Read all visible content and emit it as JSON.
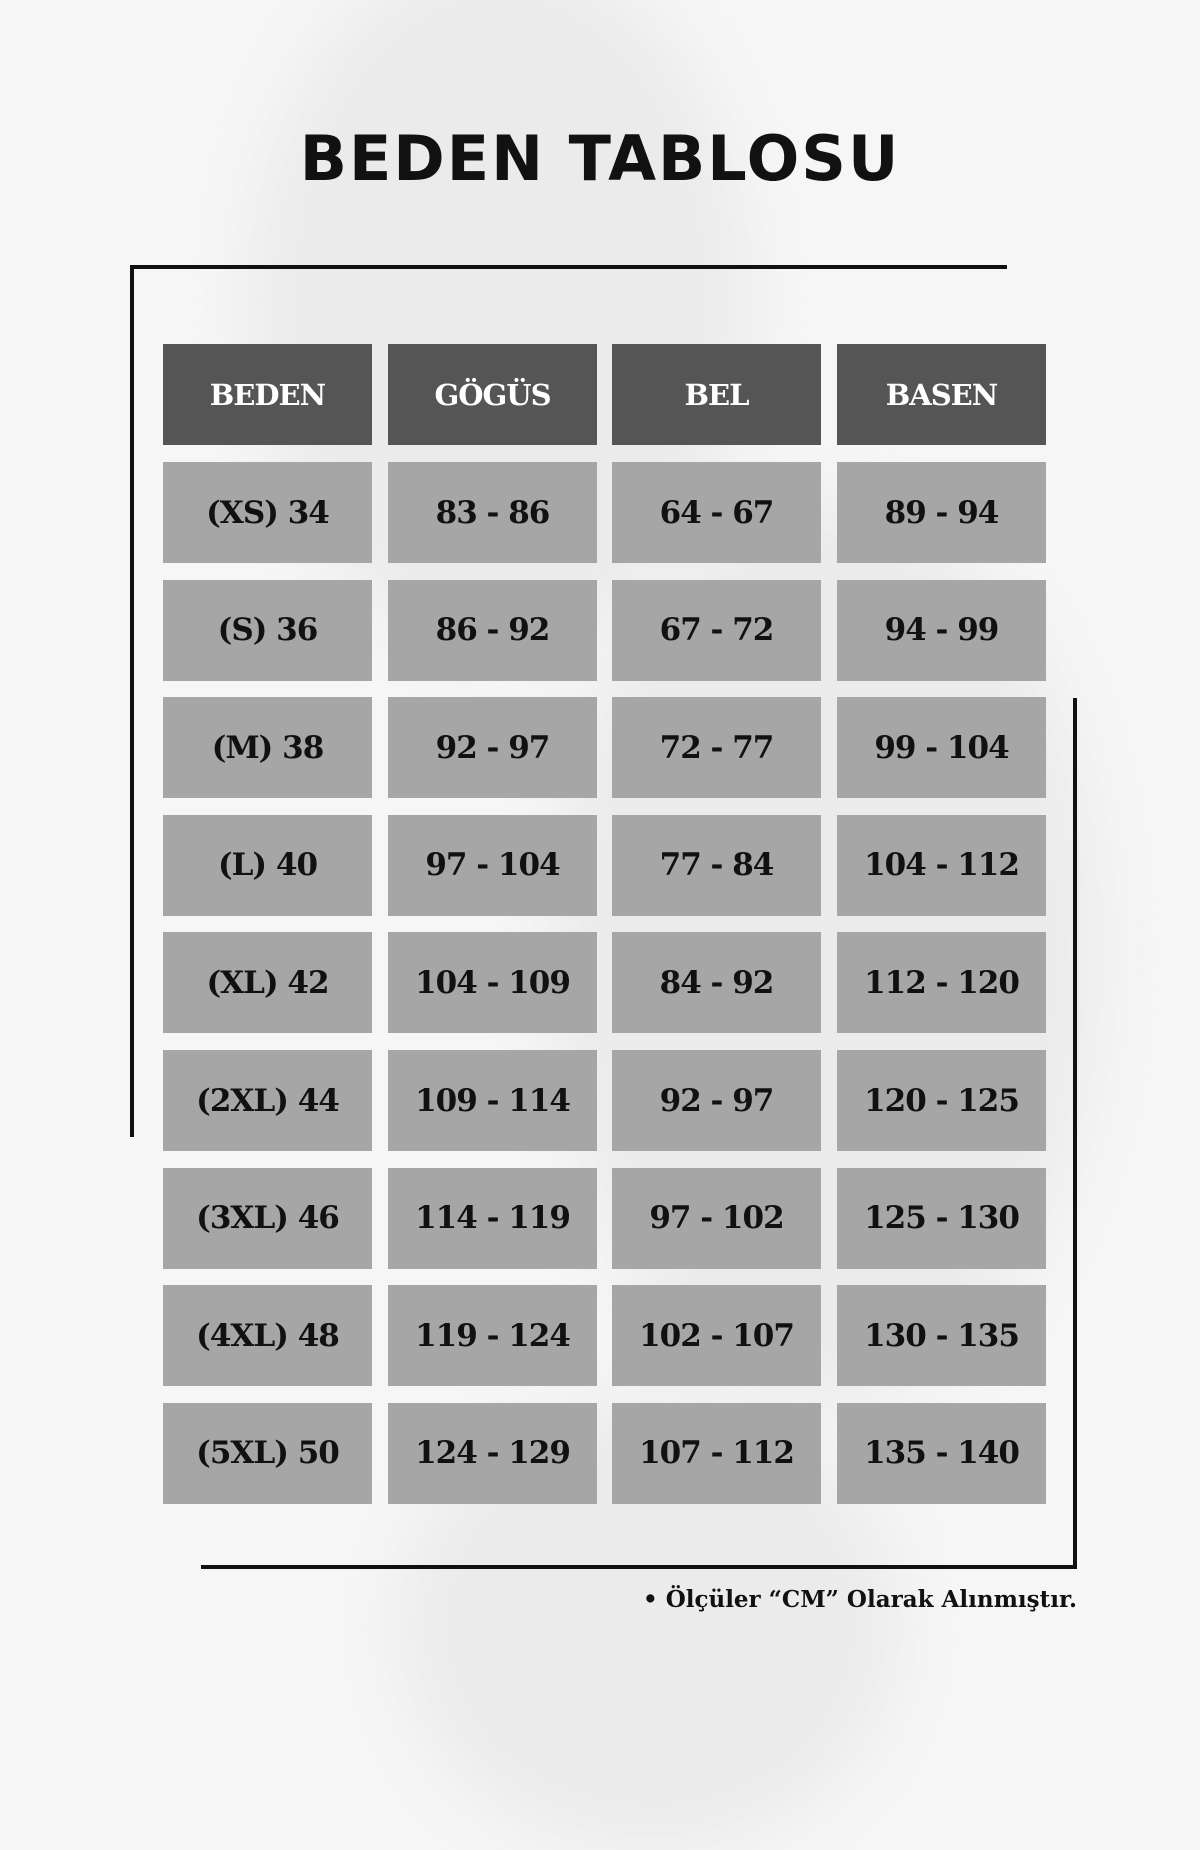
{
  "title": "BEDEN TABLOSU",
  "table": {
    "headers": [
      "BEDEN",
      "GÖGÜS",
      "BEL",
      "BASEN"
    ],
    "rows": [
      [
        "(XS) 34",
        "83 - 86",
        "64 - 67",
        "89 - 94"
      ],
      [
        "(S) 36",
        "86 - 92",
        "67 - 72",
        "94 - 99"
      ],
      [
        "(M) 38",
        "92 - 97",
        "72 - 77",
        "99 - 104"
      ],
      [
        "(L) 40",
        "97 - 104",
        "77 - 84",
        "104 - 112"
      ],
      [
        "(XL) 42",
        "104 - 109",
        "84 - 92",
        "112 - 120"
      ],
      [
        "(2XL) 44",
        "109 - 114",
        "92 - 97",
        "120 - 125"
      ],
      [
        "(3XL) 46",
        "114 - 119",
        "97 - 102",
        "125 - 130"
      ],
      [
        "(4XL) 48",
        "119 - 124",
        "102 - 107",
        "130 - 135"
      ],
      [
        "(5XL) 50",
        "124 - 129",
        "107 - 112",
        "135 - 140"
      ]
    ]
  },
  "note": "• Ölçüler “CM” Olarak Alınmıştır.",
  "colors": {
    "header_bg": "#555555",
    "cell_bg": "#a6a6a6",
    "frame": "#111111"
  }
}
